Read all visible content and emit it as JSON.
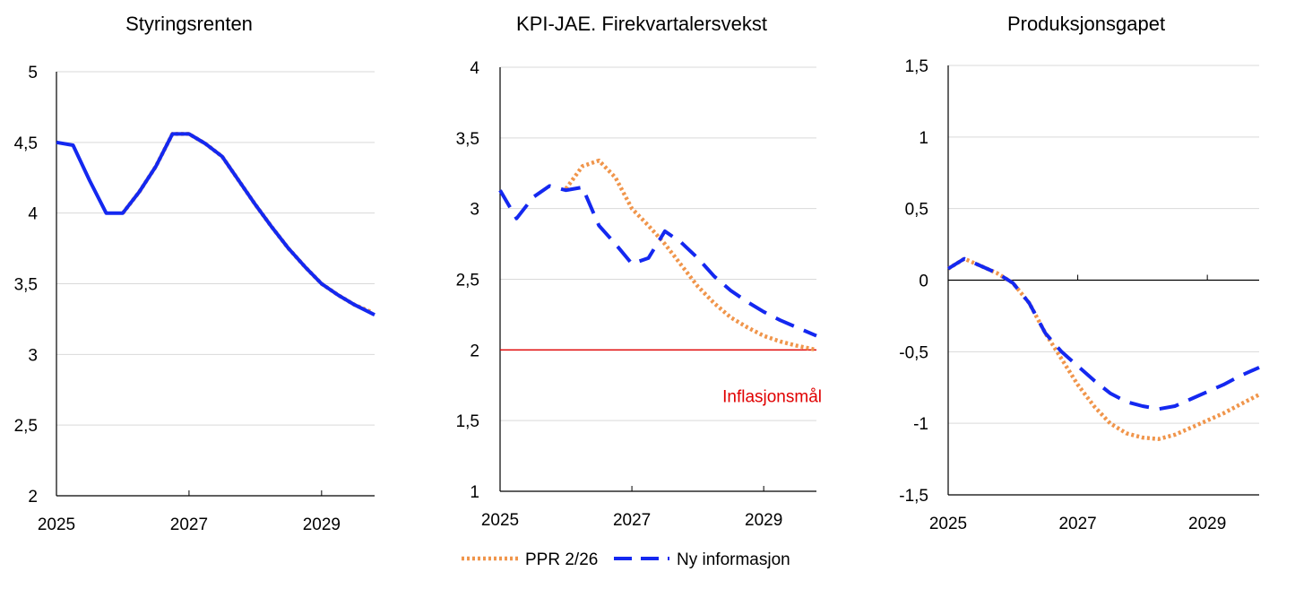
{
  "colors": {
    "ppr": "#f0954b",
    "ny": "#1428f0",
    "target": "#e00000",
    "grid": "#d9d9d9",
    "axis": "#000000"
  },
  "legend": {
    "ppr_label": "PPR 2/26",
    "ny_label": "Ny informasjon"
  },
  "chart_data": [
    {
      "type": "line",
      "title": "Styringsrenten",
      "xlim": [
        2025,
        2029.8
      ],
      "ylim": [
        2,
        5
      ],
      "yticks": [
        2,
        2.5,
        3,
        3.5,
        4,
        4.5,
        5
      ],
      "ytick_labels": [
        "2",
        "2,5",
        "3",
        "3,5",
        "4",
        "4,5",
        "5"
      ],
      "xticks": [
        2025,
        2027,
        2029
      ],
      "xtick_labels": [
        "2025",
        "2027",
        "2029"
      ],
      "grid": true,
      "series": [
        {
          "name": "PPR 2/26",
          "style": "dotted",
          "x": [
            2026.0,
            2026.25,
            2026.5,
            2026.75,
            2027.0,
            2027.25,
            2027.5,
            2027.75,
            2028.0,
            2028.25,
            2028.5,
            2028.75,
            2029.0,
            2029.25,
            2029.5,
            2029.75
          ],
          "y": [
            4.0,
            4.15,
            4.33,
            4.56,
            4.56,
            4.49,
            4.4,
            4.23,
            4.06,
            3.9,
            3.75,
            3.62,
            3.5,
            3.42,
            3.35,
            3.3
          ]
        },
        {
          "name": "Ny informasjon",
          "style": "dashed-solid",
          "x": [
            2025.0,
            2025.25,
            2025.5,
            2025.75,
            2026.0,
            2026.25,
            2026.5,
            2026.75,
            2027.0,
            2027.25,
            2027.5,
            2027.75,
            2028.0,
            2028.25,
            2028.5,
            2028.75,
            2029.0,
            2029.25,
            2029.5,
            2029.8
          ],
          "y": [
            4.5,
            4.48,
            4.23,
            4.0,
            4.0,
            4.15,
            4.33,
            4.56,
            4.56,
            4.49,
            4.4,
            4.23,
            4.06,
            3.9,
            3.75,
            3.62,
            3.5,
            3.42,
            3.35,
            3.28
          ]
        }
      ]
    },
    {
      "type": "line",
      "title": "KPI-JAE. Firekvartalersvekst",
      "xlim": [
        2025,
        2029.8
      ],
      "ylim": [
        1,
        4
      ],
      "yticks": [
        1,
        1.5,
        2,
        2.5,
        3,
        3.5,
        4
      ],
      "ytick_labels": [
        "1",
        "1,5",
        "2",
        "2,5",
        "3",
        "3,5",
        "4"
      ],
      "xticks": [
        2025,
        2027,
        2029
      ],
      "xtick_labels": [
        "2025",
        "2027",
        "2029"
      ],
      "grid": true,
      "reference_line": {
        "y": 2,
        "label": "Inflasjonsmål"
      },
      "series": [
        {
          "name": "PPR 2/26",
          "style": "dotted",
          "x": [
            2026.0,
            2026.25,
            2026.5,
            2026.75,
            2027.0,
            2027.25,
            2027.5,
            2027.75,
            2028.0,
            2028.25,
            2028.5,
            2028.75,
            2029.0,
            2029.25,
            2029.5,
            2029.8
          ],
          "y": [
            3.14,
            3.3,
            3.34,
            3.22,
            3.0,
            2.88,
            2.75,
            2.6,
            2.45,
            2.33,
            2.23,
            2.16,
            2.1,
            2.06,
            2.03,
            2.0
          ]
        },
        {
          "name": "Ny informasjon",
          "style": "dashed",
          "x": [
            2025.0,
            2025.25,
            2025.5,
            2025.75,
            2026.0,
            2026.25,
            2026.5,
            2026.75,
            2027.0,
            2027.25,
            2027.5,
            2027.75,
            2028.0,
            2028.25,
            2028.5,
            2028.75,
            2029.0,
            2029.25,
            2029.5,
            2029.8
          ],
          "y": [
            3.13,
            2.93,
            3.08,
            3.16,
            3.13,
            3.15,
            2.88,
            2.75,
            2.61,
            2.65,
            2.84,
            2.76,
            2.65,
            2.52,
            2.42,
            2.34,
            2.27,
            2.21,
            2.16,
            2.1
          ]
        }
      ]
    },
    {
      "type": "line",
      "title": "Produksjonsgapet",
      "xlim": [
        2025,
        2029.8
      ],
      "ylim": [
        -1.5,
        1.5
      ],
      "yticks": [
        -1.5,
        -1,
        -0.5,
        0,
        0.5,
        1,
        1.5
      ],
      "ytick_labels": [
        "-1,5",
        "-1",
        "-0,5",
        "0",
        "0,5",
        "1",
        "1,5"
      ],
      "xticks": [
        2025,
        2027,
        2029
      ],
      "xtick_labels": [
        "2025",
        "2027",
        "2029"
      ],
      "grid": true,
      "series": [
        {
          "name": "PPR 2/26",
          "style": "dotted",
          "x": [
            2025.0,
            2025.25,
            2025.5,
            2025.75,
            2026.0,
            2026.25,
            2026.5,
            2026.75,
            2027.0,
            2027.25,
            2027.5,
            2027.75,
            2028.0,
            2028.25,
            2028.5,
            2028.75,
            2029.0,
            2029.25,
            2029.5,
            2029.8
          ],
          "y": [
            0.08,
            0.15,
            0.1,
            0.05,
            -0.02,
            -0.16,
            -0.37,
            -0.55,
            -0.73,
            -0.88,
            -1.0,
            -1.07,
            -1.1,
            -1.11,
            -1.08,
            -1.03,
            -0.98,
            -0.93,
            -0.87,
            -0.8
          ]
        },
        {
          "name": "Ny informasjon",
          "style": "dashed",
          "x": [
            2025.0,
            2025.25,
            2025.5,
            2025.75,
            2026.0,
            2026.25,
            2026.5,
            2026.75,
            2027.0,
            2027.25,
            2027.5,
            2027.75,
            2028.0,
            2028.25,
            2028.5,
            2028.75,
            2029.0,
            2029.25,
            2029.5,
            2029.8
          ],
          "y": [
            0.08,
            0.15,
            0.1,
            0.05,
            -0.02,
            -0.16,
            -0.37,
            -0.5,
            -0.6,
            -0.7,
            -0.79,
            -0.85,
            -0.88,
            -0.9,
            -0.88,
            -0.83,
            -0.78,
            -0.73,
            -0.67,
            -0.61
          ]
        }
      ]
    }
  ]
}
